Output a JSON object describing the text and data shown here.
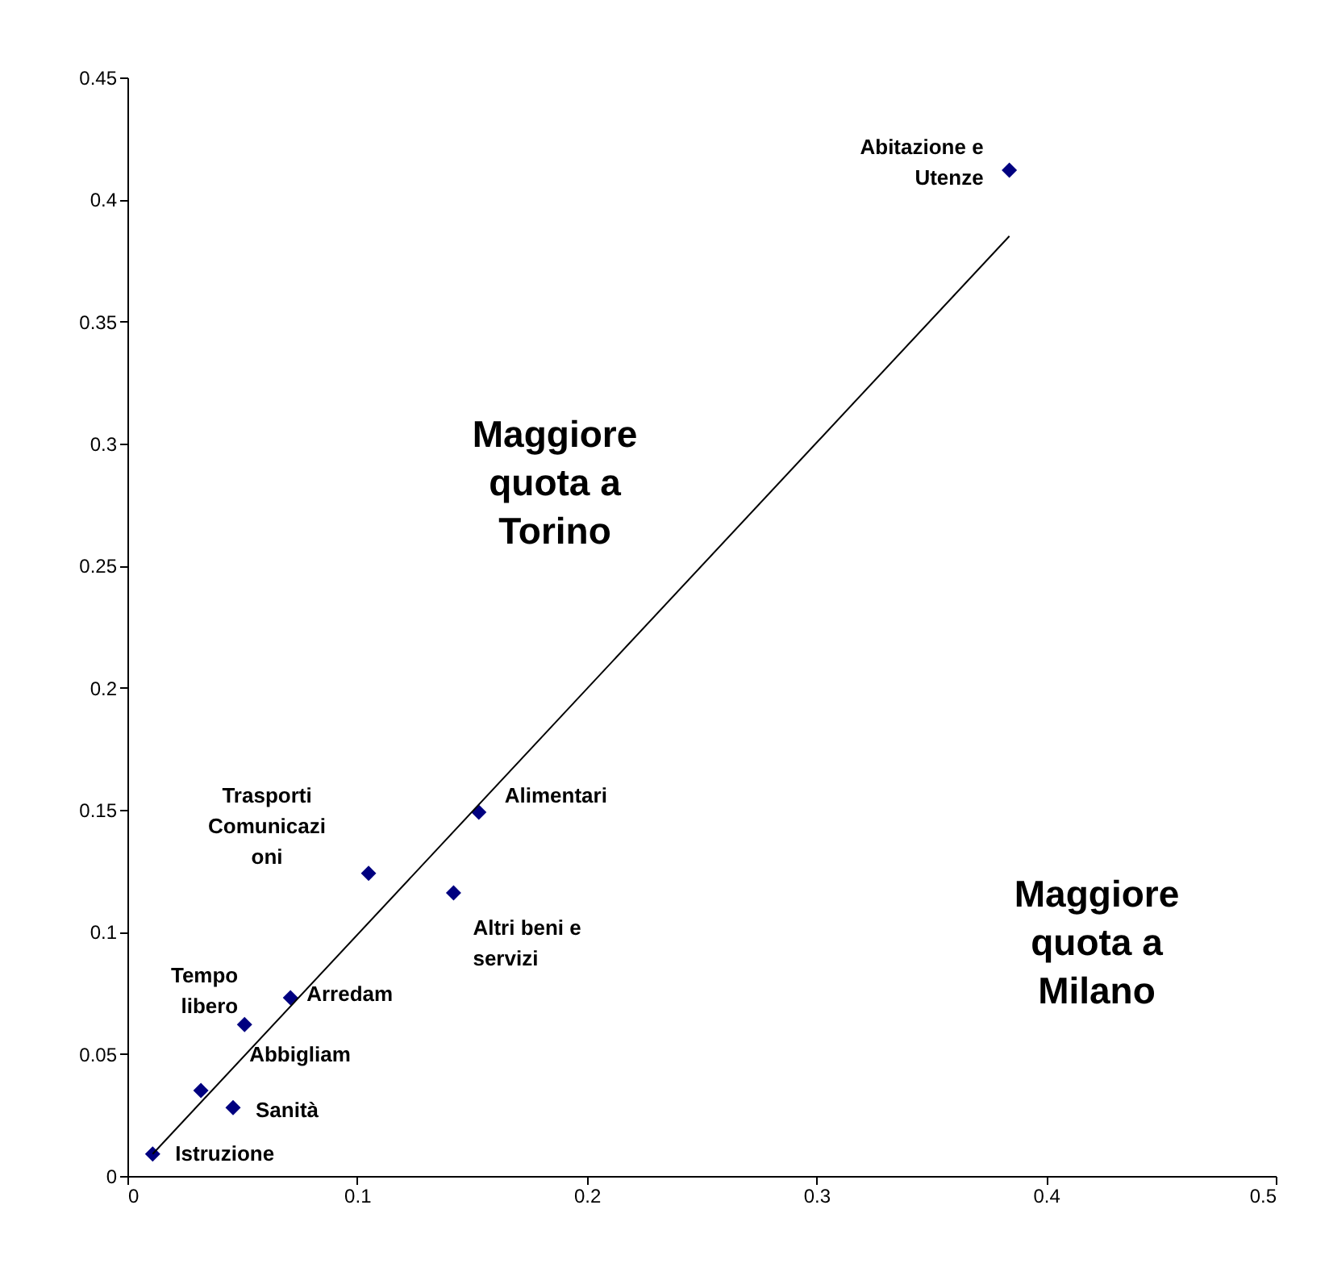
{
  "chart_data": {
    "type": "scatter",
    "marker": "diamond",
    "grid": false,
    "legend": false,
    "xlim": [
      0,
      0.5
    ],
    "xticks": [
      0,
      0.1,
      0.2,
      0.3,
      0.4,
      0.5
    ],
    "ylim": [
      0,
      0.45
    ],
    "yticks": [
      0,
      0.05,
      0.1,
      0.15,
      0.2,
      0.25,
      0.3,
      0.35,
      0.4,
      0.45
    ],
    "series": [
      {
        "type": "scatter",
        "color": "#000080",
        "x": [
          0.384,
          0.153,
          0.105,
          0.142,
          0.071,
          0.051,
          0.032,
          0.046,
          0.011
        ],
        "values": [
          0.412,
          0.149,
          0.124,
          0.116,
          0.073,
          0.062,
          0.035,
          0.028,
          0.009
        ]
      },
      {
        "type": "line",
        "marker": "none",
        "color": "#000000",
        "x": [
          0.011,
          0.384
        ],
        "values": [
          0.009,
          0.385
        ]
      }
    ],
    "annotations": [
      {
        "text": "Abitazione e\nUtenze",
        "x": 0.384,
        "y": 0.412
      },
      {
        "text": "Alimentari",
        "x": 0.153,
        "y": 0.149
      },
      {
        "text": "Trasporti\nComunicazi\noni",
        "x": 0.105,
        "y": 0.124
      },
      {
        "text": "Altri beni e\nservizi",
        "x": 0.142,
        "y": 0.116
      },
      {
        "text": "Arredam",
        "x": 0.071,
        "y": 0.073
      },
      {
        "text": "Tempo\nlibero",
        "x": 0.051,
        "y": 0.062
      },
      {
        "text": "Abbigliam",
        "x": 0.032,
        "y": 0.035
      },
      {
        "text": "Sanità",
        "x": 0.046,
        "y": 0.028
      },
      {
        "text": "Istruzione",
        "x": 0.011,
        "y": 0.009
      },
      "Maggiore\nquota a\nTorino",
      "Maggiore\nquota a\nMilano"
    ]
  }
}
